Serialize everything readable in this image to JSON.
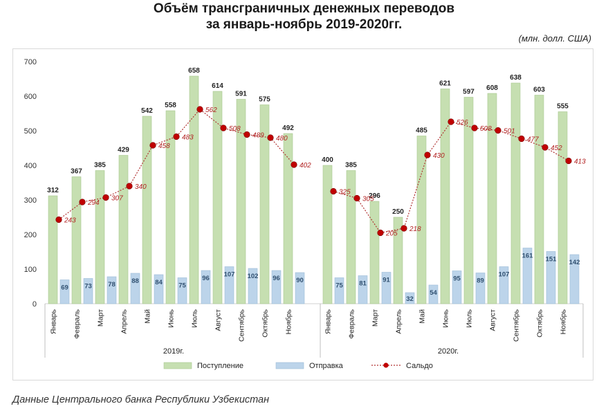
{
  "title_line1": "Объём трансграничных денежных переводов",
  "title_line2": "за январь-ноябрь 2019-2020гг.",
  "units": "(млн. долл. США)",
  "source": "Данные Центрального банка Республики Узбекистан",
  "colors": {
    "inflow": "#c6dfb1",
    "inflow_edge": "#a9c98f",
    "outflow": "#bcd4ea",
    "outflow_edge": "#9dbcd8",
    "saldo": "#c00000",
    "saldo_line": "#b03030"
  },
  "chart_data": {
    "type": "bar",
    "title": "Объём трансграничных денежных переводов за январь-ноябрь 2019-2020гг.",
    "ylabel": "млн. долл. США",
    "ylim": [
      0,
      700
    ],
    "yticks": [
      0,
      100,
      200,
      300,
      400,
      500,
      600,
      700
    ],
    "legend": {
      "position": "bottom",
      "entries": [
        "Поступление",
        "Отправка",
        "Сальдо"
      ]
    },
    "groups": [
      {
        "year": "2019г.",
        "categories": [
          "Январь",
          "Февраль",
          "Март",
          "Апрель",
          "Май",
          "Июнь",
          "Июль",
          "Август",
          "Сентябрь",
          "Октябрь",
          "Ноябрь"
        ],
        "series": [
          {
            "name": "Поступление",
            "kind": "bar",
            "values": [
              312,
              367,
              385,
              429,
              542,
              558,
              658,
              614,
              591,
              575,
              492
            ]
          },
          {
            "name": "Отправка",
            "kind": "bar",
            "values": [
              69,
              73,
              78,
              88,
              84,
              75,
              96,
              107,
              102,
              96,
              90
            ]
          },
          {
            "name": "Сальдо",
            "kind": "line",
            "values": [
              243,
              294,
              307,
              340,
              458,
              483,
              562,
              508,
              489,
              480,
              402
            ]
          }
        ]
      },
      {
        "year": "2020г.",
        "categories": [
          "Январь",
          "Февраль",
          "Март",
          "Апрель",
          "Май",
          "Июнь",
          "Июль",
          "Август",
          "Сентябрь",
          "Октябрь",
          "Ноябрь"
        ],
        "series": [
          {
            "name": "Поступление",
            "kind": "bar",
            "values": [
              400,
              385,
              296,
              250,
              485,
              621,
              597,
              608,
              638,
              603,
              555
            ]
          },
          {
            "name": "Отправка",
            "kind": "bar",
            "values": [
              75,
              81,
              91,
              32,
              54,
              95,
              89,
              107,
              161,
              151,
              142
            ]
          },
          {
            "name": "Сальдо",
            "kind": "line",
            "values": [
              325,
              305,
              205,
              218,
              430,
              526,
              508,
              501,
              477,
              452,
              413
            ]
          }
        ]
      }
    ]
  }
}
